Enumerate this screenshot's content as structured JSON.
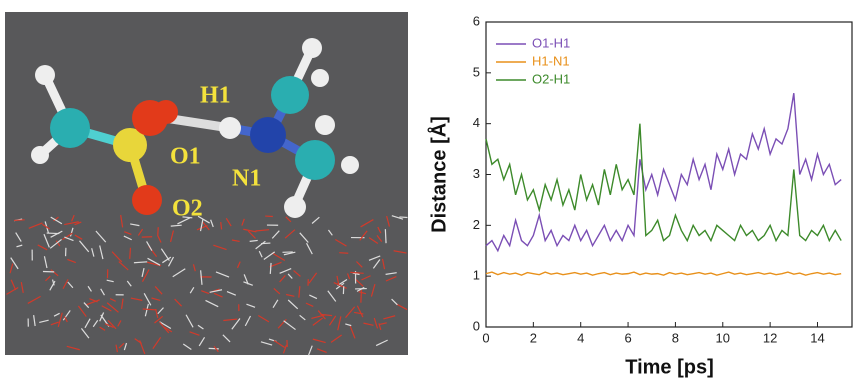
{
  "molecule_image": {
    "labels": [
      "H1",
      "O1",
      "N1",
      "O2"
    ]
  },
  "chart_data": {
    "type": "line",
    "x_label": "Time [ps]",
    "y_label": "Distance [Å]",
    "xlim": [
      0,
      15.5
    ],
    "xticks": [
      0,
      2,
      4,
      6,
      8,
      10,
      12,
      14
    ],
    "ylim": [
      0,
      6
    ],
    "yticks": [
      0,
      1,
      2,
      3,
      4,
      5,
      6
    ],
    "grid": false,
    "legend": "top-left",
    "x": [
      0,
      0.25,
      0.5,
      0.75,
      1,
      1.25,
      1.5,
      1.75,
      2,
      2.25,
      2.5,
      2.75,
      3,
      3.25,
      3.5,
      3.75,
      4,
      4.25,
      4.5,
      4.75,
      5,
      5.25,
      5.5,
      5.75,
      6,
      6.25,
      6.5,
      6.75,
      7,
      7.25,
      7.5,
      7.75,
      8,
      8.25,
      8.5,
      8.75,
      9,
      9.25,
      9.5,
      9.75,
      10,
      10.25,
      10.5,
      10.75,
      11,
      11.25,
      11.5,
      11.75,
      12,
      12.25,
      12.5,
      12.75,
      13,
      13.25,
      13.5,
      13.75,
      14,
      14.25,
      14.5,
      14.75,
      15
    ],
    "series": [
      {
        "name": "O1-H1",
        "color": "#7b4fb5",
        "values": [
          1.6,
          1.7,
          1.5,
          1.8,
          1.6,
          2.1,
          1.7,
          1.6,
          1.8,
          2.2,
          1.7,
          1.9,
          1.6,
          1.8,
          1.7,
          2.0,
          1.7,
          1.9,
          1.6,
          1.8,
          2.0,
          1.7,
          1.9,
          1.7,
          2.0,
          1.8,
          3.3,
          2.7,
          3.0,
          2.6,
          3.1,
          2.8,
          2.5,
          3.0,
          2.8,
          3.3,
          2.9,
          3.2,
          2.7,
          3.4,
          3.1,
          3.5,
          3.0,
          3.4,
          3.3,
          3.8,
          3.5,
          3.9,
          3.4,
          3.7,
          3.6,
          3.9,
          4.6,
          3.0,
          3.3,
          2.9,
          3.4,
          3.0,
          3.2,
          2.8,
          2.9
        ]
      },
      {
        "name": "H1-N1",
        "color": "#e8901a",
        "values": [
          1.05,
          1.08,
          1.03,
          1.07,
          1.04,
          1.06,
          1.02,
          1.07,
          1.05,
          1.03,
          1.08,
          1.04,
          1.06,
          1.03,
          1.05,
          1.07,
          1.04,
          1.06,
          1.02,
          1.05,
          1.07,
          1.03,
          1.06,
          1.04,
          1.05,
          1.08,
          1.03,
          1.06,
          1.04,
          1.05,
          1.02,
          1.07,
          1.04,
          1.06,
          1.03,
          1.05,
          1.07,
          1.04,
          1.06,
          1.02,
          1.05,
          1.08,
          1.04,
          1.06,
          1.03,
          1.05,
          1.07,
          1.04,
          1.06,
          1.03,
          1.05,
          1.08,
          1.04,
          1.06,
          1.02,
          1.05,
          1.07,
          1.04,
          1.06,
          1.03,
          1.05
        ]
      },
      {
        "name": "O2-H1",
        "color": "#3d8a2b",
        "values": [
          3.7,
          3.2,
          3.3,
          2.9,
          3.2,
          2.6,
          3.0,
          2.5,
          2.7,
          2.3,
          2.8,
          2.5,
          2.9,
          2.4,
          2.7,
          2.3,
          3.0,
          2.5,
          2.8,
          2.4,
          3.1,
          2.6,
          3.2,
          2.7,
          2.9,
          2.6,
          4.0,
          1.8,
          1.9,
          2.1,
          1.7,
          1.8,
          2.2,
          1.9,
          1.7,
          2.0,
          1.8,
          1.9,
          1.7,
          2.0,
          1.9,
          1.8,
          1.7,
          2.0,
          1.8,
          1.9,
          1.7,
          1.8,
          2.0,
          1.7,
          1.9,
          1.8,
          3.1,
          1.8,
          1.7,
          1.9,
          1.8,
          2.0,
          1.7,
          1.9,
          1.7
        ]
      }
    ]
  }
}
